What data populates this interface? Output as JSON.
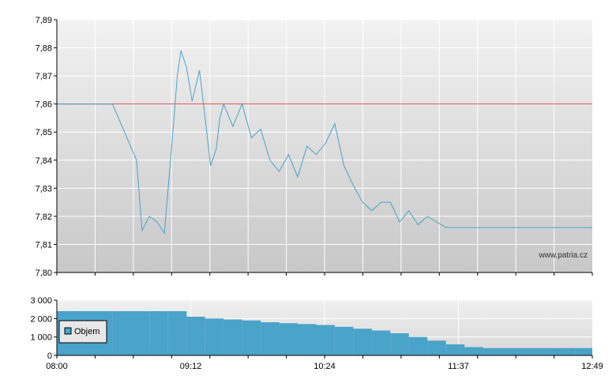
{
  "watermark": "www.patria.cz",
  "colors": {
    "price_line": "#4aa3c9",
    "reference_line": "#e05050",
    "volume_bar": "#4aa3c9",
    "grid": "#ffffff",
    "bg_top": "#f2f2f2",
    "bg_bottom": "#c8c8c8"
  },
  "chart_data": [
    {
      "type": "line",
      "title": "",
      "xlabel": "",
      "ylabel": "",
      "ylim": [
        7.8,
        7.89
      ],
      "yticks": [
        "7,80",
        "7,81",
        "7,82",
        "7,83",
        "7,84",
        "7,85",
        "7,86",
        "7,87",
        "7,88",
        "7,89"
      ],
      "x_range": [
        "08:00",
        "12:49"
      ],
      "grid": true,
      "reference_line": 7.86,
      "series": [
        {
          "x": [
            "08:00",
            "08:30",
            "08:43",
            "08:46",
            "08:50",
            "08:54",
            "08:58",
            "09:02",
            "09:05",
            "09:07",
            "09:10",
            "09:13",
            "09:17",
            "09:20",
            "09:23",
            "09:26",
            "09:28",
            "09:30",
            "09:35",
            "09:40",
            "09:45",
            "09:50",
            "09:55",
            "10:00",
            "10:05",
            "10:10",
            "10:15",
            "10:20",
            "10:25",
            "10:30",
            "10:35",
            "10:40",
            "10:45",
            "10:50",
            "10:55",
            "11:00",
            "11:05",
            "11:10",
            "11:15",
            "11:20",
            "11:25",
            "11:30",
            "11:35",
            "12:49"
          ],
          "y": [
            7.86,
            7.86,
            7.84,
            7.815,
            7.82,
            7.818,
            7.814,
            7.845,
            7.87,
            7.879,
            7.873,
            7.861,
            7.872,
            7.855,
            7.838,
            7.844,
            7.855,
            7.86,
            7.852,
            7.86,
            7.848,
            7.851,
            7.84,
            7.836,
            7.842,
            7.834,
            7.845,
            7.842,
            7.846,
            7.853,
            7.838,
            7.831,
            7.825,
            7.822,
            7.825,
            7.825,
            7.818,
            7.822,
            7.817,
            7.82,
            7.818,
            7.816,
            7.816,
            7.816
          ]
        }
      ]
    },
    {
      "type": "bar",
      "title": "",
      "xlabel": "",
      "ylabel": "",
      "ylim": [
        0,
        3000
      ],
      "yticks": [
        "0",
        "1 000",
        "2 000",
        "3 000"
      ],
      "xticks": [
        "08:00",
        "09:12",
        "10:24",
        "11:37",
        "12:49"
      ],
      "legend": "Objem",
      "legend_position": "left",
      "grid": true,
      "series": [
        {
          "name": "Objem",
          "x": [
            "08:00",
            "08:30",
            "08:50",
            "09:00",
            "09:10",
            "09:20",
            "09:30",
            "09:40",
            "09:50",
            "10:00",
            "10:10",
            "10:20",
            "10:30",
            "10:40",
            "10:50",
            "11:00",
            "11:10",
            "11:20",
            "11:30",
            "11:40",
            "11:50",
            "12:00",
            "12:10",
            "12:20",
            "12:30",
            "12:40",
            "12:49"
          ],
          "values": [
            2400,
            2400,
            2400,
            2400,
            2100,
            2000,
            1950,
            1900,
            1800,
            1750,
            1700,
            1650,
            1550,
            1450,
            1350,
            1200,
            1000,
            800,
            600,
            450,
            400,
            400,
            400,
            400,
            400,
            400,
            400
          ]
        }
      ]
    }
  ]
}
